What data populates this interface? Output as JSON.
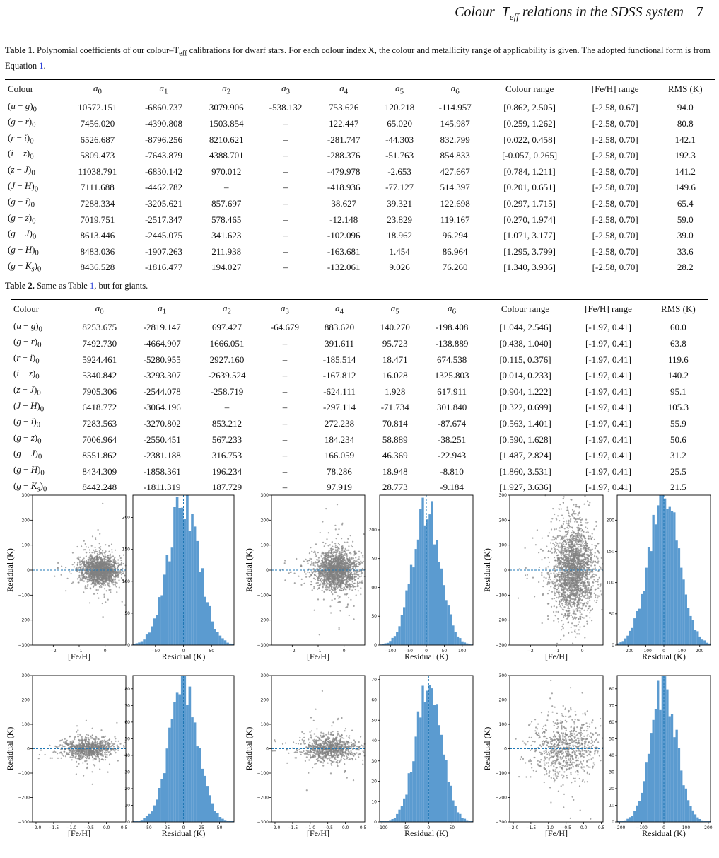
{
  "header": {
    "running_title": "Colour–T",
    "running_title_sub": "eff",
    "running_title_rest": " relations in the SDSS system",
    "page_number": "7"
  },
  "table1": {
    "caption_label": "Table 1.",
    "caption_text": "Polynomial coefficients of our colour–T",
    "caption_sub": "eff",
    "caption_rest": " calibrations for dwarf stars. For each colour index X, the colour and metallicity range of applicability is given. The adopted functional form is from Equation ",
    "caption_ref": "1",
    "caption_end": ".",
    "headers": [
      "Colour",
      "a0",
      "a1",
      "a2",
      "a3",
      "a4",
      "a5",
      "a6",
      "Colour range",
      "[Fe/H] range",
      "RMS (K)"
    ],
    "rows": [
      [
        "(u − g)0",
        "10572.151",
        "-6860.737",
        "3079.906",
        "-538.132",
        "753.626",
        "120.218",
        "-114.957",
        "[0.862, 2.505]",
        "[-2.58, 0.67]",
        "94.0"
      ],
      [
        "(g − r)0",
        "7456.020",
        "-4390.808",
        "1503.854",
        "–",
        "122.447",
        "65.020",
        "145.987",
        "[0.259, 1.262]",
        "[-2.58, 0.70]",
        "80.8"
      ],
      [
        "(r − i)0",
        "6526.687",
        "-8796.256",
        "8210.621",
        "–",
        "-281.747",
        "-44.303",
        "832.799",
        "[0.022, 0.458]",
        "[-2.58, 0.70]",
        "142.1"
      ],
      [
        "(i − z)0",
        "5809.473",
        "-7643.879",
        "4388.701",
        "–",
        "-288.376",
        "-51.763",
        "854.833",
        "[-0.057, 0.265]",
        "[-2.58, 0.70]",
        "192.3"
      ],
      [
        "(z − J)0",
        "11038.791",
        "-6830.142",
        "970.012",
        "–",
        "-479.978",
        "-2.653",
        "427.667",
        "[0.784, 1.211]",
        "[-2.58, 0.70]",
        "141.2"
      ],
      [
        "(J − H)0",
        "7111.688",
        "-4462.782",
        "–",
        "–",
        "-418.936",
        "-77.127",
        "514.397",
        "[0.201, 0.651]",
        "[-2.58, 0.70]",
        "149.6"
      ],
      [
        "(g − i)0",
        "7288.334",
        "-3205.621",
        "857.697",
        "–",
        "38.627",
        "39.321",
        "122.698",
        "[0.297, 1.715]",
        "[-2.58, 0.70]",
        "65.4"
      ],
      [
        "(g − z)0",
        "7019.751",
        "-2517.347",
        "578.465",
        "–",
        "-12.148",
        "23.829",
        "119.167",
        "[0.270, 1.974]",
        "[-2.58, 0.70]",
        "59.0"
      ],
      [
        "(g − J)0",
        "8613.446",
        "-2445.075",
        "341.623",
        "–",
        "-102.096",
        "18.962",
        "96.294",
        "[1.071, 3.177]",
        "[-2.58, 0.70]",
        "39.0"
      ],
      [
        "(g − H)0",
        "8483.036",
        "-1907.263",
        "211.938",
        "–",
        "-163.681",
        "1.454",
        "86.964",
        "[1.295, 3.799]",
        "[-2.58, 0.70]",
        "33.6"
      ],
      [
        "(g − Ks)0",
        "8436.528",
        "-1816.477",
        "194.027",
        "–",
        "-132.061",
        "9.026",
        "76.260",
        "[1.340, 3.936]",
        "[-2.58, 0.70]",
        "28.2"
      ]
    ]
  },
  "table2": {
    "caption_label": "Table 2.",
    "caption_text": "Same as Table ",
    "caption_ref": "1",
    "caption_rest": ", but for giants.",
    "headers": [
      "Colour",
      "a0",
      "a1",
      "a2",
      "a3",
      "a4",
      "a5",
      "a6",
      "Colour range",
      "[Fe/H] range",
      "RMS (K)"
    ],
    "rows": [
      [
        "(u − g)0",
        "8253.675",
        "-2819.147",
        "697.427",
        "-64.679",
        "883.620",
        "140.270",
        "-198.408",
        "[1.044, 2.546]",
        "[-1.97, 0.41]",
        "60.0"
      ],
      [
        "(g − r)0",
        "7492.730",
        "-4664.907",
        "1666.051",
        "–",
        "391.611",
        "95.723",
        "-138.889",
        "[0.438, 1.040]",
        "[-1.97, 0.41]",
        "63.8"
      ],
      [
        "(r − i)0",
        "5924.461",
        "-5280.955",
        "2927.160",
        "–",
        "-185.514",
        "18.471",
        "674.538",
        "[0.115, 0.376]",
        "[-1.97, 0.41]",
        "119.6"
      ],
      [
        "(i − z)0",
        "5340.842",
        "-3293.307",
        "-2639.524",
        "–",
        "-167.812",
        "16.028",
        "1325.803",
        "[0.014, 0.233]",
        "[-1.97, 0.41]",
        "140.2"
      ],
      [
        "(z − J)0",
        "7905.306",
        "-2544.078",
        "-258.719",
        "–",
        "-624.111",
        "1.928",
        "617.911",
        "[0.904, 1.222]",
        "[-1.97, 0.41]",
        "95.1"
      ],
      [
        "(J − H)0",
        "6418.772",
        "-3064.196",
        "–",
        "–",
        "-297.114",
        "-71.734",
        "301.840",
        "[0.322, 0.699]",
        "[-1.97, 0.41]",
        "105.3"
      ],
      [
        "(g − i)0",
        "7283.563",
        "-3270.802",
        "853.212",
        "–",
        "272.238",
        "70.814",
        "-87.674",
        "[0.563, 1.401]",
        "[-1.97, 0.41]",
        "55.9"
      ],
      [
        "(g − z)0",
        "7006.964",
        "-2550.451",
        "567.233",
        "–",
        "184.234",
        "58.889",
        "-38.251",
        "[0.590, 1.628]",
        "[-1.97, 0.41]",
        "50.6"
      ],
      [
        "(g − J)0",
        "8551.862",
        "-2381.188",
        "316.753",
        "–",
        "166.059",
        "46.369",
        "-22.943",
        "[1.487, 2.824]",
        "[-1.97, 0.41]",
        "31.2"
      ],
      [
        "(g − H)0",
        "8434.309",
        "-1858.361",
        "196.234",
        "–",
        "78.286",
        "18.948",
        "-8.810",
        "[1.860, 3.531]",
        "[-1.97, 0.41]",
        "25.5"
      ],
      [
        "(g − Ks)0",
        "8442.248",
        "-1811.319",
        "187.729",
        "–",
        "97.919",
        "28.773",
        "-9.184",
        "[1.927, 3.636]",
        "[-1.97, 0.41]",
        "21.5"
      ]
    ]
  },
  "colors": {
    "scatter": "#808080",
    "hist": "#5b9bd0",
    "hist_edge": "#5b9bd0",
    "dashed": "#1f77b4"
  },
  "chart_data": [
    {
      "type": "scatter",
      "xlabel": "[Fe/H]",
      "ylabel": "Residual (K)",
      "xlim": [
        -2.8,
        0.8
      ],
      "ylim": [
        -300,
        300
      ],
      "xticks": [
        -2,
        -1,
        0
      ],
      "yticks": [
        -300,
        -200,
        -100,
        0,
        100,
        200,
        300
      ],
      "ytick_labels": [
        "−300",
        "−200",
        "−100",
        "0",
        "100",
        "200",
        "300"
      ],
      "xtick_labels": [
        "−2",
        "−1",
        "0"
      ],
      "cluster": {
        "xc": -0.2,
        "xs": 0.35,
        "yc": 0,
        "ys": 28,
        "n": 1600
      },
      "hline": 0
    },
    {
      "type": "histogram",
      "xlabel": "Residual (K)",
      "xlim": [
        -90,
        90
      ],
      "ylim": [
        0,
        235
      ],
      "xticks": [
        -50,
        0,
        50
      ],
      "xtick_labels": [
        "−50",
        "0",
        "50"
      ],
      "yticks": [
        0,
        50,
        100,
        150,
        200
      ],
      "ytick_labels": [
        "0",
        "50",
        "100",
        "150",
        "200"
      ],
      "sigma": 28,
      "peak": 225,
      "vline": 0
    },
    {
      "type": "scatter",
      "xlabel": "[Fe/H]",
      "ylabel": "Residual (K)",
      "xlim": [
        -2.8,
        0.8
      ],
      "ylim": [
        -300,
        300
      ],
      "xticks": [
        -2,
        -1,
        0
      ],
      "yticks": [
        -300,
        -200,
        -100,
        0,
        100,
        200,
        300
      ],
      "ytick_labels": [
        "−300",
        "−200",
        "−100",
        "0",
        "100",
        "200",
        "300"
      ],
      "xtick_labels": [
        "−2",
        "−1",
        "0"
      ],
      "cluster": {
        "xc": -0.3,
        "xs": 0.4,
        "yc": 0,
        "ys": 38,
        "n": 1800
      },
      "hline": 0
    },
    {
      "type": "histogram",
      "xlabel": "Residual (K)",
      "xlim": [
        -130,
        130
      ],
      "ylim": [
        0,
        260
      ],
      "xticks": [
        -100,
        -50,
        0,
        50,
        100
      ],
      "xtick_labels": [
        "−100",
        "−50",
        "0",
        "50",
        "100"
      ],
      "yticks": [
        0,
        50,
        100,
        150,
        200
      ],
      "ytick_labels": [
        "0",
        "50",
        "100",
        "150",
        "200"
      ],
      "sigma": 38,
      "peak": 245,
      "vline": 0
    },
    {
      "type": "scatter",
      "xlabel": "[Fe/H]",
      "ylabel": "Residual (K)",
      "xlim": [
        -2.8,
        0.8
      ],
      "ylim": [
        -300,
        300
      ],
      "xticks": [
        -2,
        -1,
        0
      ],
      "yticks": [
        -300,
        -200,
        -100,
        0,
        100,
        200,
        300
      ],
      "ytick_labels": [
        "−300",
        "−200",
        "−100",
        "0",
        "100",
        "200",
        "300"
      ],
      "xtick_labels": [
        "−2",
        "−1",
        "0"
      ],
      "cluster": {
        "xc": -0.35,
        "xs": 0.4,
        "yc": 0,
        "ys": 90,
        "n": 2200
      },
      "hline": 0
    },
    {
      "type": "histogram",
      "xlabel": "Residual (K)",
      "xlim": [
        -260,
        260
      ],
      "ylim": [
        0,
        240
      ],
      "xticks": [
        -200,
        -100,
        0,
        100,
        200
      ],
      "xtick_labels": [
        "−200",
        "−100",
        "0",
        "100",
        "200"
      ],
      "yticks": [
        0,
        50,
        100,
        150,
        200
      ],
      "ytick_labels": [
        "0",
        "50",
        "100",
        "150",
        "200"
      ],
      "sigma": 85,
      "peak": 235,
      "vline": 0
    },
    {
      "type": "scatter",
      "xlabel": "[Fe/H]",
      "ylabel": "Residual (K)",
      "xlim": [
        -2.1,
        0.55
      ],
      "ylim": [
        -300,
        300
      ],
      "xticks": [
        -2.0,
        -1.5,
        -1.0,
        -0.5,
        0.0,
        0.5
      ],
      "xtick_labels": [
        "−2.0",
        "−1.5",
        "−1.0",
        "−0.5",
        "0.0",
        "0.5"
      ],
      "yticks": [
        -300,
        -200,
        -100,
        0,
        100,
        200,
        300
      ],
      "ytick_labels": [
        "−300",
        "−200",
        "−100",
        "0",
        "100",
        "200",
        "300"
      ],
      "cluster": {
        "xc": -0.5,
        "xs": 0.35,
        "yc": 0,
        "ys": 20,
        "n": 900
      },
      "hline": 0
    },
    {
      "type": "histogram",
      "xlabel": "Residual (K)",
      "xlim": [
        -70,
        70
      ],
      "ylim": [
        0,
        88
      ],
      "xticks": [
        -50,
        -25,
        0,
        25,
        50
      ],
      "xtick_labels": [
        "−50",
        "−25",
        "0",
        "25",
        "50"
      ],
      "yticks": [
        0,
        10,
        20,
        30,
        40,
        50,
        60,
        70,
        80
      ],
      "ytick_labels": [
        "0",
        "10",
        "20",
        "30",
        "40",
        "50",
        "60",
        "70",
        "80"
      ],
      "sigma": 20,
      "peak": 80,
      "vline": 0
    },
    {
      "type": "scatter",
      "xlabel": "[Fe/H]",
      "ylabel": "Residual (K)",
      "xlim": [
        -2.1,
        0.55
      ],
      "ylim": [
        -300,
        300
      ],
      "xticks": [
        -2.0,
        -1.5,
        -1.0,
        -0.5,
        0.0,
        0.5
      ],
      "xtick_labels": [
        "−2.0",
        "−1.5",
        "−1.0",
        "−0.5",
        "0.0",
        "0.5"
      ],
      "yticks": [
        -300,
        -200,
        -100,
        0,
        100,
        200,
        300
      ],
      "ytick_labels": [
        "−300",
        "−200",
        "−100",
        "0",
        "100",
        "200",
        "300"
      ],
      "cluster": {
        "xc": -0.45,
        "xs": 0.4,
        "yc": 0,
        "ys": 25,
        "n": 900
      },
      "hline": 0
    },
    {
      "type": "histogram",
      "xlabel": "Residual (K)",
      "xlim": [
        -105,
        95
      ],
      "ylim": [
        0,
        72
      ],
      "xticks": [
        -100,
        -50,
        0,
        50
      ],
      "xtick_labels": [
        "−100",
        "−50",
        "0",
        "50"
      ],
      "yticks": [
        0,
        10,
        20,
        30,
        40,
        50,
        60,
        70
      ],
      "ytick_labels": [
        "0",
        "10",
        "20",
        "30",
        "40",
        "50",
        "60",
        "70"
      ],
      "sigma": 28,
      "peak": 66,
      "vline": 0
    },
    {
      "type": "scatter",
      "xlabel": "[Fe/H]",
      "ylabel": "Residual (K)",
      "xlim": [
        -2.1,
        0.55
      ],
      "ylim": [
        -300,
        300
      ],
      "xticks": [
        -2.0,
        -1.5,
        -1.0,
        -0.5,
        0.0,
        0.5
      ],
      "xtick_labels": [
        "−2.0",
        "−1.5",
        "−1.0",
        "−0.5",
        "0.0",
        "0.5"
      ],
      "yticks": [
        -300,
        -200,
        -100,
        0,
        100,
        200,
        300
      ],
      "ytick_labels": [
        "−300",
        "−200",
        "−100",
        "0",
        "100",
        "200",
        "300"
      ],
      "cluster": {
        "xc": -0.5,
        "xs": 0.45,
        "yc": 0,
        "ys": 60,
        "n": 800
      },
      "hline": 0
    },
    {
      "type": "histogram",
      "xlabel": "Residual (K)",
      "xlim": [
        -210,
        210
      ],
      "ylim": [
        0,
        88
      ],
      "xticks": [
        -200,
        -100,
        0,
        100,
        200
      ],
      "xtick_labels": [
        "−200",
        "−100",
        "0",
        "100",
        "200"
      ],
      "yticks": [
        0,
        10,
        20,
        30,
        40,
        50,
        60,
        70,
        80
      ],
      "ytick_labels": [
        "0",
        "10",
        "20",
        "30",
        "40",
        "50",
        "60",
        "70",
        "80"
      ],
      "sigma": 58,
      "peak": 82,
      "vline": 0
    }
  ]
}
